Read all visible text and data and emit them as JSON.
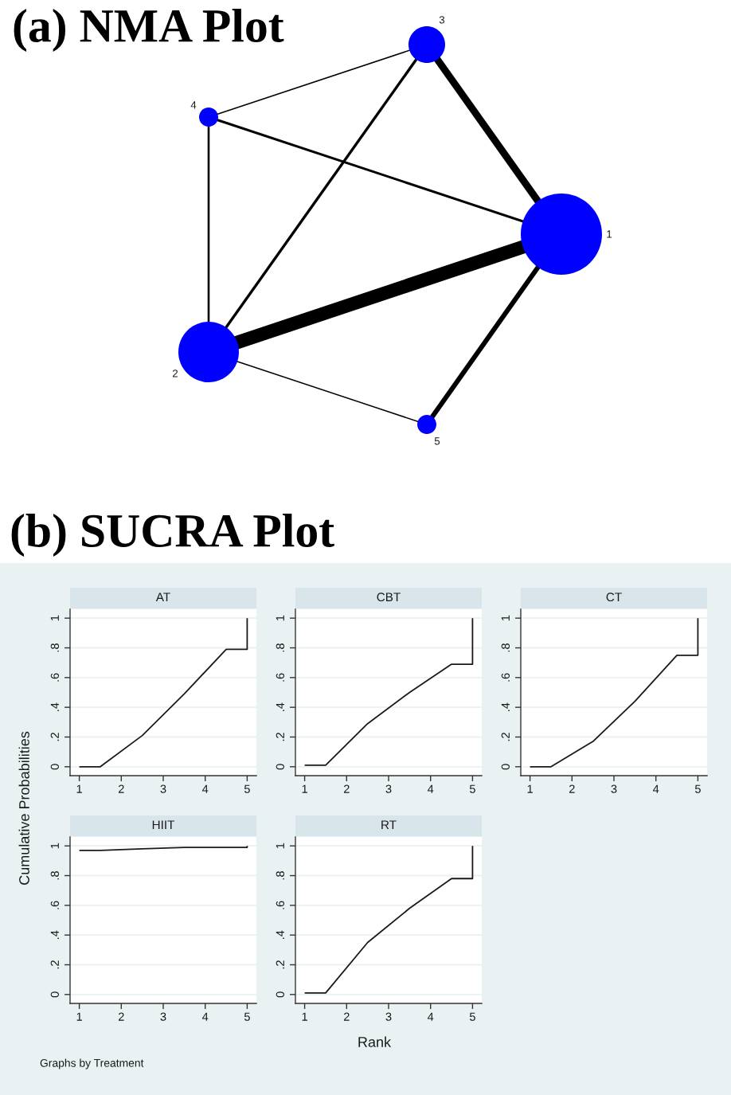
{
  "chart_data": [
    {
      "type": "other",
      "title": "(a) NMA Plot",
      "annotations": [
        "1",
        "2",
        "3",
        "4",
        "5"
      ]
    },
    {
      "type": "other",
      "title": "(b) SUCRA Plot",
      "xlabel": "Rank",
      "ylabel": "Cumulative Probabilities",
      "annotations": [
        "Graphs by Treatment"
      ]
    },
    {
      "type": "line",
      "title": "AT",
      "series": [
        {
          "color": "#1a1a1a",
          "x": [
            1,
            1.5,
            2.5,
            3.5,
            4.5,
            5,
            5
          ],
          "values": [
            0,
            0,
            0.21,
            0.49,
            0.79,
            0.79,
            1
          ]
        }
      ],
      "xlim": [
        0.78,
        5.22
      ],
      "ylim": [
        -0.06,
        1.06
      ],
      "xticks": [
        1,
        2,
        3,
        4,
        5
      ],
      "yticks": [
        0,
        {
          "value": 0.2,
          "label": ".2"
        },
        {
          "value": 0.4,
          "label": ".4"
        },
        {
          "value": 0.6,
          "label": ".6"
        },
        {
          "value": 0.8,
          "label": ".8"
        },
        1
      ],
      "grid": "y"
    },
    {
      "type": "line",
      "title": "CBT",
      "series": [
        {
          "color": "#1a1a1a",
          "x": [
            1,
            1.5,
            2.5,
            3.5,
            4.5,
            5,
            5
          ],
          "values": [
            0.01,
            0.01,
            0.29,
            0.5,
            0.69,
            0.69,
            1
          ]
        }
      ],
      "xlim": [
        0.78,
        5.22
      ],
      "ylim": [
        -0.06,
        1.06
      ],
      "xticks": [
        1,
        2,
        3,
        4,
        5
      ],
      "yticks": [
        0,
        {
          "value": 0.2,
          "label": ".2"
        },
        {
          "value": 0.4,
          "label": ".4"
        },
        {
          "value": 0.6,
          "label": ".6"
        },
        {
          "value": 0.8,
          "label": ".8"
        },
        1
      ],
      "grid": "y"
    },
    {
      "type": "line",
      "title": "CT",
      "series": [
        {
          "color": "#1a1a1a",
          "x": [
            1,
            1.5,
            2.5,
            3.5,
            4.5,
            5,
            5
          ],
          "values": [
            0,
            0,
            0.17,
            0.44,
            0.75,
            0.75,
            1
          ]
        }
      ],
      "xlim": [
        0.78,
        5.22
      ],
      "ylim": [
        -0.06,
        1.06
      ],
      "xticks": [
        1,
        2,
        3,
        4,
        5
      ],
      "yticks": [
        0,
        {
          "value": 0.2,
          "label": ".2"
        },
        {
          "value": 0.4,
          "label": ".4"
        },
        {
          "value": 0.6,
          "label": ".6"
        },
        {
          "value": 0.8,
          "label": ".8"
        },
        1
      ],
      "grid": "y"
    },
    {
      "type": "line",
      "title": "HIIT",
      "series": [
        {
          "color": "#1a1a1a",
          "x": [
            1,
            1.5,
            2.5,
            3.5,
            4.5,
            5,
            5
          ],
          "values": [
            0.97,
            0.97,
            0.98,
            0.99,
            0.99,
            0.99,
            1
          ]
        }
      ],
      "xlim": [
        0.78,
        5.22
      ],
      "ylim": [
        -0.06,
        1.06
      ],
      "xticks": [
        1,
        2,
        3,
        4,
        5
      ],
      "yticks": [
        0,
        {
          "value": 0.2,
          "label": ".2"
        },
        {
          "value": 0.4,
          "label": ".4"
        },
        {
          "value": 0.6,
          "label": ".6"
        },
        {
          "value": 0.8,
          "label": ".8"
        },
        1
      ],
      "grid": "y"
    },
    {
      "type": "line",
      "title": "RT",
      "series": [
        {
          "color": "#1a1a1a",
          "x": [
            1,
            1.5,
            2.5,
            3.5,
            4.5,
            5,
            5
          ],
          "values": [
            0.01,
            0.01,
            0.35,
            0.58,
            0.78,
            0.78,
            1
          ]
        }
      ],
      "xlim": [
        0.78,
        5.22
      ],
      "ylim": [
        -0.06,
        1.06
      ],
      "xticks": [
        1,
        2,
        3,
        4,
        5
      ],
      "yticks": [
        0,
        {
          "value": 0.2,
          "label": ".2"
        },
        {
          "value": 0.4,
          "label": ".4"
        },
        {
          "value": 0.6,
          "label": ".6"
        },
        {
          "value": 0.8,
          "label": ".8"
        },
        1
      ],
      "grid": "y"
    }
  ]
}
